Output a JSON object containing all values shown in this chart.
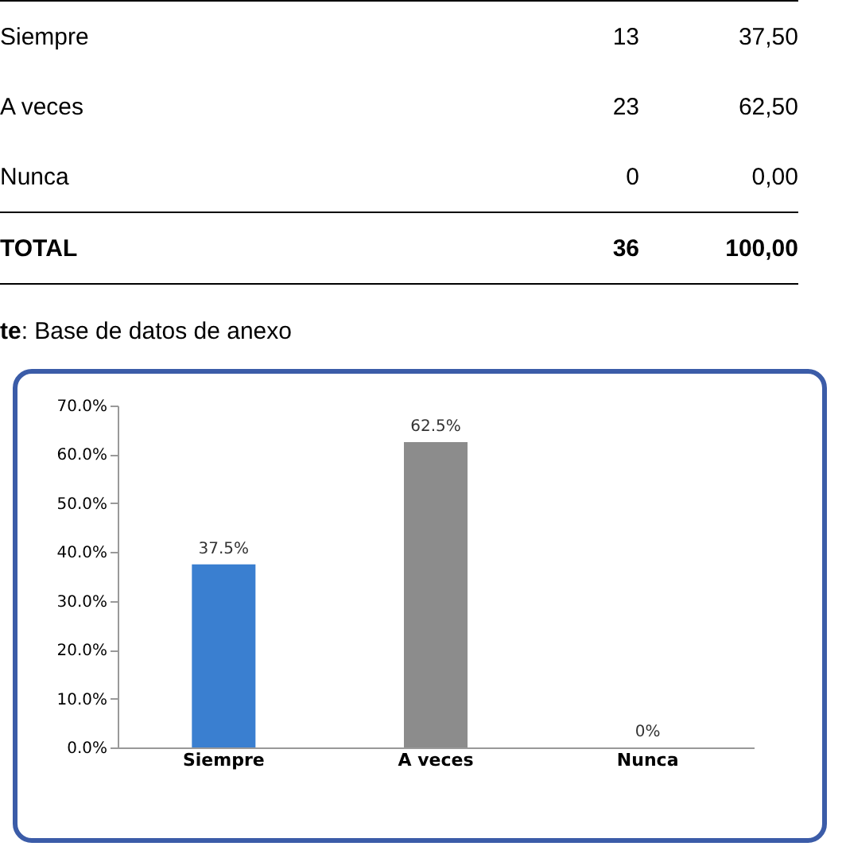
{
  "chart_data": {
    "type": "bar",
    "categories": [
      "Siempre",
      "A veces",
      "Nunca"
    ],
    "values": [
      37.5,
      62.5,
      0
    ],
    "colors": [
      "#3a7fd0",
      "#8c8c8c",
      "#a0480f"
    ],
    "value_labels": [
      "37.5%",
      "62.5%",
      "0%"
    ],
    "ylim": [
      0,
      70
    ],
    "yticks": [
      {
        "value": 0,
        "label": "0.0%"
      },
      {
        "value": 10,
        "label": "10.0%"
      },
      {
        "value": 20,
        "label": "20.0%"
      },
      {
        "value": 30,
        "label": "30.0%"
      },
      {
        "value": 40,
        "label": "40.0%"
      },
      {
        "value": 50,
        "label": "50.0%"
      },
      {
        "value": 60,
        "label": "60.0%"
      },
      {
        "value": 70,
        "label": "70.0%"
      }
    ],
    "grid": false,
    "annotations": [
      "Siempre",
      "13",
      "37,50",
      "A veces",
      "23",
      "62,50",
      "Nunca",
      "0",
      "0,00",
      "TOTAL",
      "36",
      "100,00",
      "te: Base de datos de anexo"
    ]
  }
}
